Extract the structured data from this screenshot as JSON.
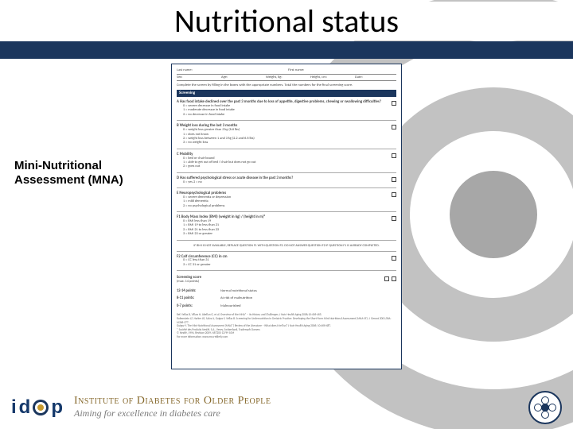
{
  "slide": {
    "title": "Nutritional status",
    "sidebar_label": "Mini-Nutritional Assessment (MNA)",
    "colors": {
      "brand_navy": "#1b365d",
      "ring_grey": "#c2c2c2",
      "ring_dark": "#888888",
      "bullseye": "#a7a7a7",
      "gold": "#876a2e",
      "subtitle_grey": "#7a7a7a",
      "form_text": "#444444"
    }
  },
  "form": {
    "patient_fields": {
      "row1": {
        "last": "Last name:",
        "first": "First name:"
      },
      "row2": {
        "sex": "Sex:",
        "age": "Age:",
        "weight": "Weight, kg:",
        "height": "Height, cm:",
        "date": "Date:"
      }
    },
    "instruction": "Complete the screen by filling in the boxes with the appropriate numbers. Total the numbers for the final screening score.",
    "screening_header": "Screening",
    "questions": [
      {
        "id": "A",
        "title": "A  Has food intake declined over the past 3 months due to loss of appetite, digestive problems, chewing or swallowing difficulties?",
        "options": [
          "0 = severe decrease in food intake",
          "1 = moderate decrease in food intake",
          "2 = no decrease in food intake"
        ],
        "boxes": 1
      },
      {
        "id": "B",
        "title": "B  Weight loss during the last 3 months",
        "options": [
          "0 = weight loss greater than 3 kg (6.6 lbs)",
          "1 = does not know",
          "2 = weight loss between 1 and 3 kg (2.2 and 6.6 lbs)",
          "3 = no weight loss"
        ],
        "boxes": 1
      },
      {
        "id": "C",
        "title": "C  Mobility",
        "options": [
          "0 = bed or chair bound",
          "1 = able to get out of bed / chair but does not go out",
          "2 = goes out"
        ],
        "boxes": 1
      },
      {
        "id": "D",
        "title": "D  Has suffered psychological stress or acute disease in the past 3 months?",
        "options": [
          "0 = yes    2 = no"
        ],
        "boxes": 1
      },
      {
        "id": "E",
        "title": "E  Neuropsychological problems",
        "options": [
          "0 = severe dementia or depression",
          "1 = mild dementia",
          "2 = no psychological problems"
        ],
        "boxes": 1
      },
      {
        "id": "F1",
        "title": "F1 Body Mass Index (BMI) (weight in kg) / (height in m)²",
        "options": [
          "0 = BMI less than 19",
          "1 = BMI 19 to less than 21",
          "2 = BMI 21 to less than 23",
          "3 = BMI 23 or greater"
        ],
        "boxes": 1
      }
    ],
    "bmi_note": "IF BMI IS NOT AVAILABLE, REPLACE QUESTION F1 WITH QUESTION F2. DO NOT ANSWER QUESTION F2 IF QUESTION F1 IS ALREADY COMPLETED.",
    "f2": {
      "title": "F2 Calf circumference (CC) in cm",
      "options": [
        "0 = CC less than 31",
        "3 = CC 31 or greater"
      ],
      "boxes": 1
    },
    "score_title": "Screening score",
    "score_sub": "(max. 14 points)",
    "score_rows": [
      {
        "range": "12-14 points:",
        "meaning": "Normal nutritional status"
      },
      {
        "range": "8-11 points:",
        "meaning": "At risk of malnutrition"
      },
      {
        "range": "0-7 points:",
        "meaning": "Malnourished"
      }
    ],
    "references": "Ref.   Vellas B, Villars H, Abellan G, et al. Overview of the MNA® – Its History and Challenges. J Nutr Health Aging 2006;10:456-465.\nRubenstein LZ, Harker JO, Salva A, Guigoz Y, Vellas B. Screening for Undernutrition in Geriatric Practice: Developing the Short-Form Mini Nutritional Assessment (MNA-SF). J. Geront 2001;56A: M366-377.\nGuigoz Y. The Mini-Nutritional Assessment (MNA®) Review of the Literature – What does it tell us? J Nutr Health Aging 2006; 10:466-487.\n® Société des Produits Nestlé, S.A., Vevey, Switzerland, Trademark Owners\n© Nestlé, 1994, Revision 2009. N67200 12/99 10M\nFor more information: www.mna-elderly.com"
  },
  "footer": {
    "logo_text": {
      "i": "i",
      "d": "d",
      "p": "p"
    },
    "institute_line": "Institute of Diabetes for Older People",
    "tagline": "Aiming for excellence in diabetes care"
  },
  "rings": {
    "diameters": [
      560,
      440,
      320,
      210,
      110
    ],
    "colors": [
      "#c2c2c2",
      "#ffffff",
      "#c2c2c2",
      "#ffffff",
      "#a7a7a7"
    ]
  }
}
